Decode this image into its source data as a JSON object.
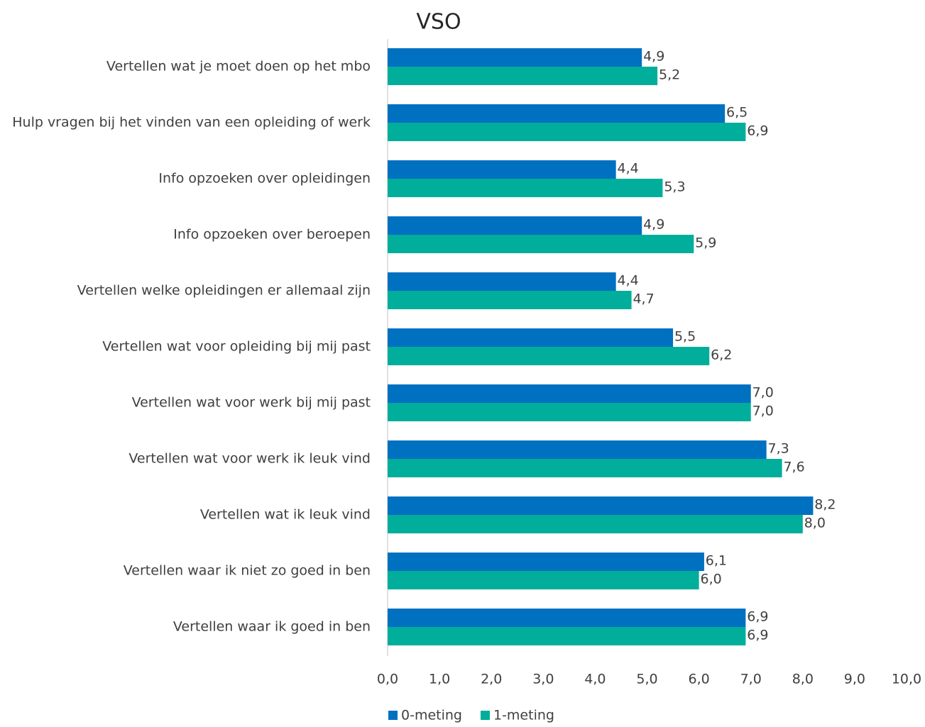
{
  "chart_data": {
    "type": "bar",
    "orientation": "horizontal",
    "title": "VSO",
    "categories": [
      "Vertellen wat je moet doen op het mbo",
      "Hulp vragen bij het vinden van een opleiding of werk",
      "Info opzoeken over opleidingen",
      "Info opzoeken over beroepen",
      "Vertellen welke opleidingen er allemaal zijn",
      "Vertellen wat voor opleiding bij mij past",
      "Vertellen wat voor werk bij mij past",
      "Vertellen wat voor werk ik leuk vind",
      "Vertellen wat ik leuk vind",
      "Vertellen waar ik niet zo goed in ben",
      "Vertellen waar ik goed in ben"
    ],
    "series": [
      {
        "name": "0-meting",
        "color": "#0070c0",
        "values": [
          4.9,
          6.5,
          4.4,
          4.9,
          4.4,
          5.5,
          7.0,
          7.3,
          8.2,
          6.1,
          6.9
        ],
        "value_labels": [
          "4,9",
          "6,5",
          "4,4",
          "4,9",
          "4,4",
          "5,5",
          "7,0",
          "7,3",
          "8,2",
          "6,1",
          "6,9"
        ]
      },
      {
        "name": "1-meting",
        "color": "#00ae9b",
        "values": [
          5.2,
          6.9,
          5.3,
          5.9,
          4.7,
          6.2,
          7.0,
          7.6,
          8.0,
          6.0,
          6.9
        ],
        "value_labels": [
          "5,2",
          "6,9",
          "5,3",
          "5,9",
          "4,7",
          "6,2",
          "7,0",
          "7,6",
          "8,0",
          "6,0",
          "6,9"
        ]
      }
    ],
    "xlim": [
      0,
      10
    ],
    "xticks": [
      {
        "value": 0,
        "label": "0,0"
      },
      {
        "value": 1,
        "label": "1,0"
      },
      {
        "value": 2,
        "label": "2,0"
      },
      {
        "value": 3,
        "label": "3,0"
      },
      {
        "value": 4,
        "label": "4,0"
      },
      {
        "value": 5,
        "label": "5,0"
      },
      {
        "value": 6,
        "label": "6,0"
      },
      {
        "value": 7,
        "label": "7,0"
      },
      {
        "value": 8,
        "label": "8,0"
      },
      {
        "value": 9,
        "label": "9,0"
      },
      {
        "value": 10,
        "label": "10,0"
      }
    ],
    "grid": false,
    "legend": "bottom"
  }
}
